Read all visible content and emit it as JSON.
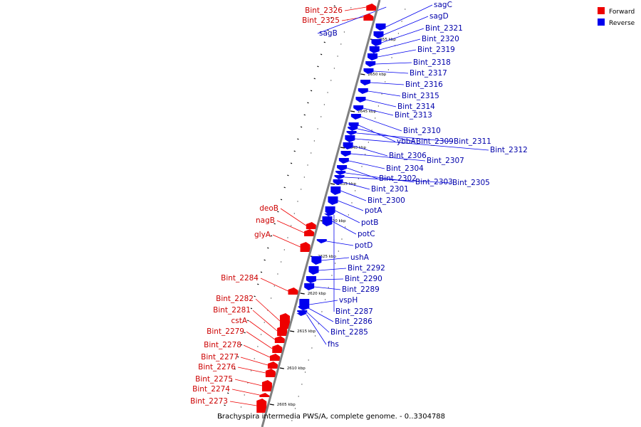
{
  "legend": {
    "forward_label": "Forward",
    "reverse_label": "Reverse",
    "forward_color": "#ee0000",
    "reverse_color": "#0000ee"
  },
  "caption": "Brachyspira intermedia PWS/A, complete genome. - 0..3304788",
  "tick_labels": [
    "2605 kbp",
    "2610 kbp",
    "2615 kbp",
    "2620 kbp",
    "2625 kbp",
    "2630 kbp",
    "2635 kbp",
    "2640 kbp",
    "2645 kbp",
    "2650 kbp",
    "2655 kbp"
  ],
  "forward_genes": [
    "Bint_2326",
    "Bint_2325",
    "deoB",
    "nagB",
    "glyA",
    "Bint_2284",
    "Bint_2282",
    "Bint_2281",
    "cstA",
    "Bint_2279",
    "Bint_2278",
    "Bint_2277",
    "Bint_2276",
    "Bint_2275",
    "Bint_2274",
    "Bint_2273"
  ],
  "reverse_genes": [
    "sagB",
    "sagC",
    "sagD",
    "Bint_2321",
    "Bint_2320",
    "Bint_2319",
    "Bint_2318",
    "Bint_2317",
    "Bint_2316",
    "Bint_2315",
    "Bint_2314",
    "Bint_2313",
    "Bint_2310",
    "ybbA",
    "Bint_2309",
    "Bint_2311",
    "Bint_2312",
    "Bint_2306",
    "Bint_2307",
    "Bint_2304",
    "Bint_2302",
    "Bint_2303",
    "Bint_2305",
    "Bint_2301",
    "Bint_2300",
    "potA",
    "potB",
    "potC",
    "potD",
    "ushA",
    "Bint_2292",
    "Bint_2290",
    "Bint_2289",
    "vspH",
    "Bint_2287",
    "Bint_2286",
    "Bint_2285",
    "fhs"
  ]
}
